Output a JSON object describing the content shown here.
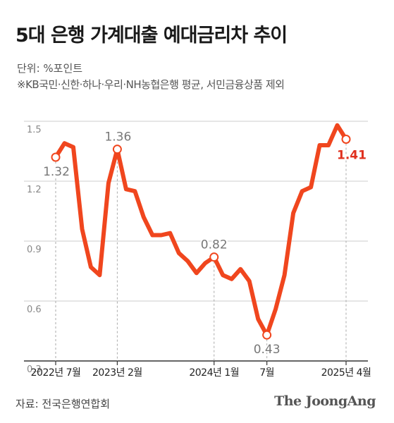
{
  "title": "5대 은행 가계대출 예대금리차 추이",
  "unit_note": "단위: %포인트",
  "footnote": "※KB국민·신한·하나·우리·NH농협은행 평균, 서민금융상품 제외",
  "source": "자료: 전국은행연합회",
  "brand": "The JoongAng",
  "colors": {
    "line": "#f0461e",
    "highlight": "#e0301e",
    "axis_text": "#888888",
    "label_text": "#777777",
    "grid": "#cccccc"
  },
  "chart_data": {
    "type": "line",
    "ylim": [
      0.3,
      1.5
    ],
    "yticks": [
      "1.5",
      "1.2",
      "0.9",
      "0.6",
      "0.3"
    ],
    "grid": true,
    "x_tick_labels": [
      "2022년 7월",
      "2023년 2월",
      "2024년 1월",
      "7월",
      "2025년 4월"
    ],
    "series": [
      {
        "values": [
          1.32,
          1.39,
          1.37,
          0.96,
          0.77,
          0.73,
          1.19,
          1.36,
          1.16,
          1.15,
          1.02,
          0.93,
          0.93,
          0.94,
          0.84,
          0.8,
          0.74,
          0.79,
          0.82,
          0.73,
          0.71,
          0.76,
          0.7,
          0.51,
          0.43,
          0.56,
          0.73,
          1.04,
          1.15,
          1.17,
          1.38,
          1.38,
          1.48,
          1.41
        ]
      }
    ],
    "annotations": [
      {
        "index": 0,
        "label": "1.32"
      },
      {
        "index": 7,
        "label": "1.36"
      },
      {
        "index": 18,
        "label": "0.82"
      },
      {
        "index": 24,
        "label": "0.43"
      },
      {
        "index": 33,
        "label": "1.41"
      }
    ]
  }
}
